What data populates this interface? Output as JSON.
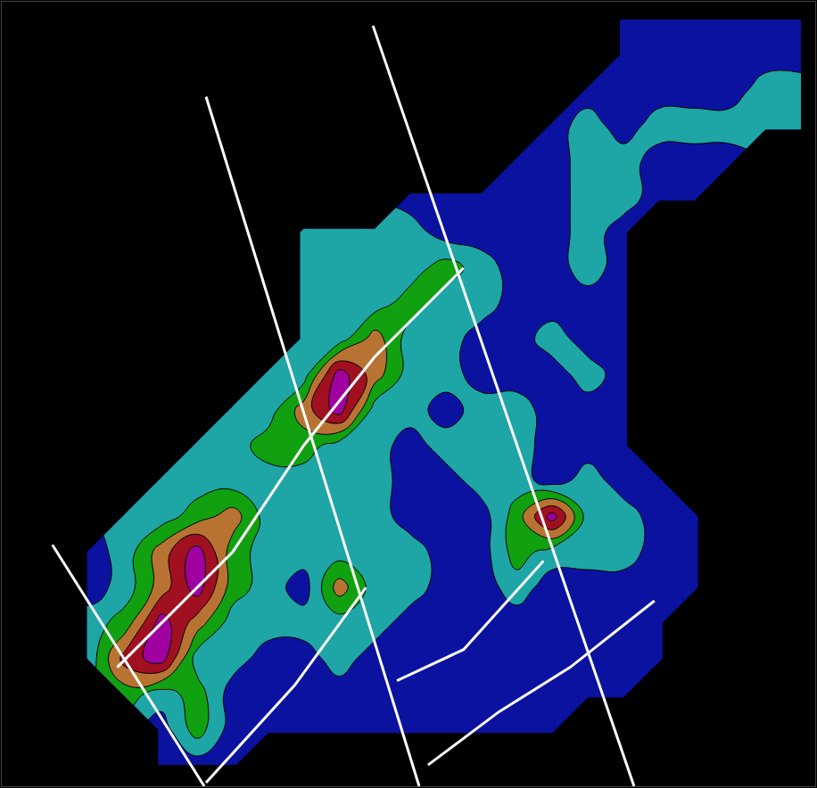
{
  "chart_data": {
    "type": "contour",
    "tick_labels": false,
    "grid": false,
    "xlim": [
      0,
      916
    ],
    "ylim": [
      884,
      0
    ],
    "x": [
      20,
      60,
      100,
      140,
      180,
      220,
      260,
      300,
      340,
      380,
      420,
      460,
      500,
      540,
      580,
      620,
      660,
      700,
      740,
      780,
      820,
      860,
      900
    ],
    "y": [
      20,
      60,
      100,
      140,
      180,
      220,
      260,
      300,
      340,
      380,
      420,
      460,
      500,
      540,
      580,
      620,
      660,
      700,
      740,
      780,
      820,
      860
    ],
    "z_levels": [
      0,
      1,
      2,
      3,
      4,
      5
    ],
    "colors": [
      "#0b12a0",
      "#1ea5a5",
      "#10a010",
      "#b87333",
      "#a01020",
      "#a000a0"
    ],
    "z": [
      [
        null,
        null,
        null,
        null,
        null,
        null,
        null,
        null,
        null,
        null,
        null,
        null,
        null,
        null,
        null,
        null,
        null,
        0,
        0,
        0,
        0,
        0,
        0
      ],
      [
        null,
        null,
        null,
        null,
        null,
        null,
        null,
        null,
        null,
        null,
        null,
        null,
        null,
        null,
        null,
        null,
        null,
        0,
        0,
        0,
        0,
        0,
        0
      ],
      [
        null,
        null,
        null,
        null,
        null,
        null,
        null,
        null,
        null,
        null,
        null,
        null,
        null,
        null,
        null,
        null,
        0,
        0,
        0,
        0,
        0,
        1,
        1
      ],
      [
        null,
        null,
        null,
        null,
        null,
        null,
        null,
        null,
        null,
        null,
        null,
        null,
        null,
        null,
        null,
        0,
        1,
        0,
        1,
        1,
        1,
        1,
        1
      ],
      [
        null,
        null,
        null,
        null,
        null,
        null,
        null,
        null,
        null,
        null,
        null,
        null,
        null,
        null,
        0,
        0,
        1,
        1,
        0,
        0,
        0,
        null,
        null
      ],
      [
        null,
        null,
        null,
        null,
        null,
        null,
        null,
        null,
        null,
        null,
        null,
        0,
        0,
        0,
        0,
        0,
        1,
        1,
        0,
        0,
        null,
        null,
        null
      ],
      [
        null,
        null,
        null,
        null,
        null,
        null,
        null,
        null,
        1,
        1,
        1,
        1,
        0,
        0,
        0,
        0,
        1,
        0,
        null,
        null,
        null,
        null,
        null
      ],
      [
        null,
        null,
        null,
        null,
        null,
        null,
        null,
        null,
        1,
        1,
        1,
        1,
        2,
        1,
        0,
        0,
        1,
        0,
        null,
        null,
        null,
        null,
        null
      ],
      [
        null,
        null,
        null,
        null,
        null,
        null,
        null,
        null,
        1,
        1,
        1,
        2,
        1,
        1,
        0,
        0,
        0,
        0,
        null,
        null,
        null,
        null,
        null
      ],
      [
        null,
        null,
        null,
        null,
        null,
        null,
        null,
        null,
        1,
        1,
        3,
        1,
        1,
        0,
        0,
        1,
        0,
        0,
        null,
        null,
        null,
        null,
        null
      ],
      [
        null,
        null,
        null,
        null,
        null,
        null,
        null,
        1,
        1,
        5,
        3,
        1,
        1,
        0,
        0,
        0,
        1,
        0,
        null,
        null,
        null,
        null,
        null
      ],
      [
        null,
        null,
        null,
        null,
        null,
        null,
        1,
        1,
        3,
        5,
        1,
        1,
        0,
        1,
        1,
        0,
        0,
        0,
        null,
        null,
        null,
        null,
        null
      ],
      [
        null,
        null,
        null,
        null,
        null,
        1,
        1,
        2,
        2,
        1,
        1,
        0,
        1,
        1,
        1,
        0,
        0,
        0,
        null,
        null,
        null,
        null,
        null
      ],
      [
        null,
        null,
        null,
        null,
        1,
        1,
        1,
        1,
        1,
        1,
        1,
        0,
        0,
        1,
        1,
        0,
        1,
        0,
        0,
        null,
        null,
        null,
        null
      ],
      [
        null,
        null,
        null,
        1,
        1,
        2,
        3,
        1,
        1,
        1,
        1,
        0,
        0,
        0,
        2,
        5,
        1,
        1,
        0,
        0,
        null,
        null,
        null
      ],
      [
        null,
        null,
        0,
        1,
        3,
        5,
        2,
        1,
        1,
        1,
        1,
        1,
        0,
        0,
        2,
        1,
        1,
        1,
        0,
        0,
        null,
        null,
        null
      ],
      [
        null,
        null,
        0,
        1,
        3,
        5,
        2,
        1,
        0,
        3,
        1,
        1,
        0,
        0,
        1,
        0,
        0,
        0,
        0,
        0,
        null,
        null,
        null
      ],
      [
        null,
        null,
        1,
        2,
        5,
        3,
        1,
        1,
        1,
        1,
        1,
        0,
        0,
        0,
        0,
        0,
        0,
        0,
        0,
        null,
        null,
        null,
        null
      ],
      [
        null,
        null,
        1,
        4,
        5,
        1,
        1,
        0,
        0,
        1,
        0,
        0,
        0,
        0,
        0,
        0,
        0,
        0,
        0,
        null,
        null,
        null,
        null
      ],
      [
        null,
        null,
        null,
        2,
        1,
        2,
        0,
        0,
        0,
        0,
        0,
        0,
        0,
        0,
        0,
        0,
        0,
        0,
        null,
        null,
        null,
        null,
        null
      ],
      [
        null,
        null,
        null,
        null,
        0,
        2,
        0,
        0,
        0,
        0,
        0,
        0,
        0,
        0,
        0,
        0,
        null,
        null,
        null,
        null,
        null,
        null,
        null
      ],
      [
        null,
        null,
        null,
        null,
        0,
        0,
        0,
        null,
        null,
        null,
        null,
        null,
        null,
        null,
        null,
        null,
        null,
        null,
        null,
        null,
        null,
        null,
        null
      ]
    ],
    "lines": [
      {
        "color": "#ffffff",
        "x": [
          57,
          228
        ],
        "y": [
          612,
          884
        ]
      },
      {
        "color": "#ffffff",
        "x": [
          230,
          470
        ],
        "y": [
          107,
          884
        ]
      },
      {
        "color": "#ffffff",
        "x": [
          418,
          712
        ],
        "y": [
          27,
          884
        ]
      },
      {
        "color": "#ffffff",
        "x": [
          130,
          260,
          340,
          420,
          520
        ],
        "y": [
          750,
          620,
          500,
          400,
          300
        ]
      },
      {
        "color": "#ffffff",
        "x": [
          230,
          330,
          410
        ],
        "y": [
          880,
          770,
          660
        ]
      },
      {
        "color": "#ffffff",
        "x": [
          445,
          520,
          610
        ],
        "y": [
          765,
          730,
          630
        ]
      },
      {
        "color": "#ffffff",
        "x": [
          480,
          560,
          640,
          735
        ],
        "y": [
          860,
          800,
          750,
          675
        ]
      }
    ]
  }
}
